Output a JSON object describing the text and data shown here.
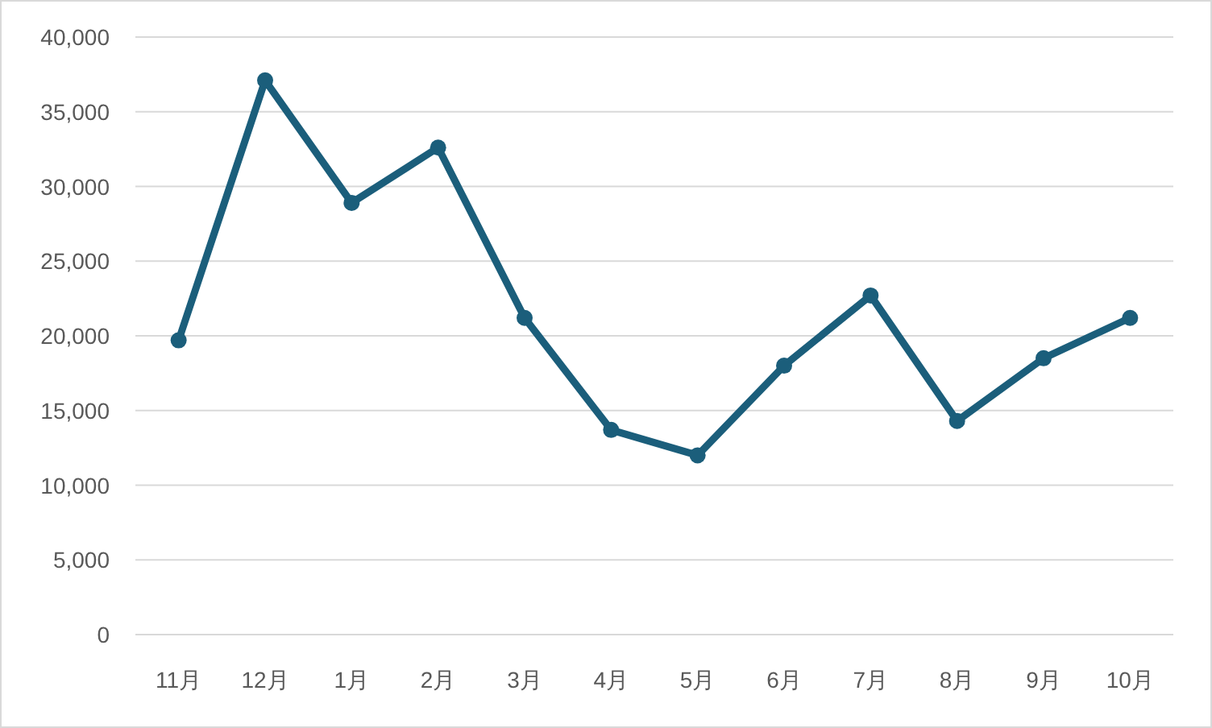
{
  "chart_data": {
    "type": "line",
    "categories": [
      "11月",
      "12月",
      "1月",
      "2月",
      "3月",
      "4月",
      "5月",
      "6月",
      "7月",
      "8月",
      "9月",
      "10月"
    ],
    "series": [
      {
        "color": "#1b5e7b",
        "values": [
          19700,
          37100,
          28900,
          32600,
          21200,
          13700,
          12000,
          18000,
          22700,
          14300,
          18500,
          21200
        ]
      }
    ],
    "ylim": [
      0,
      40000
    ],
    "yticks": [
      0,
      {
        "value": 5000,
        "label": "5,000"
      },
      {
        "value": 10000,
        "label": "10,000"
      },
      {
        "value": 15000,
        "label": "15,000"
      },
      {
        "value": 20000,
        "label": "20,000"
      },
      {
        "value": 25000,
        "label": "25,000"
      },
      {
        "value": 30000,
        "label": "30,000"
      },
      {
        "value": 35000,
        "label": "35,000"
      },
      {
        "value": 40000,
        "label": "40,000"
      }
    ],
    "grid": "y",
    "marker": "circle",
    "line_style": "solid"
  }
}
